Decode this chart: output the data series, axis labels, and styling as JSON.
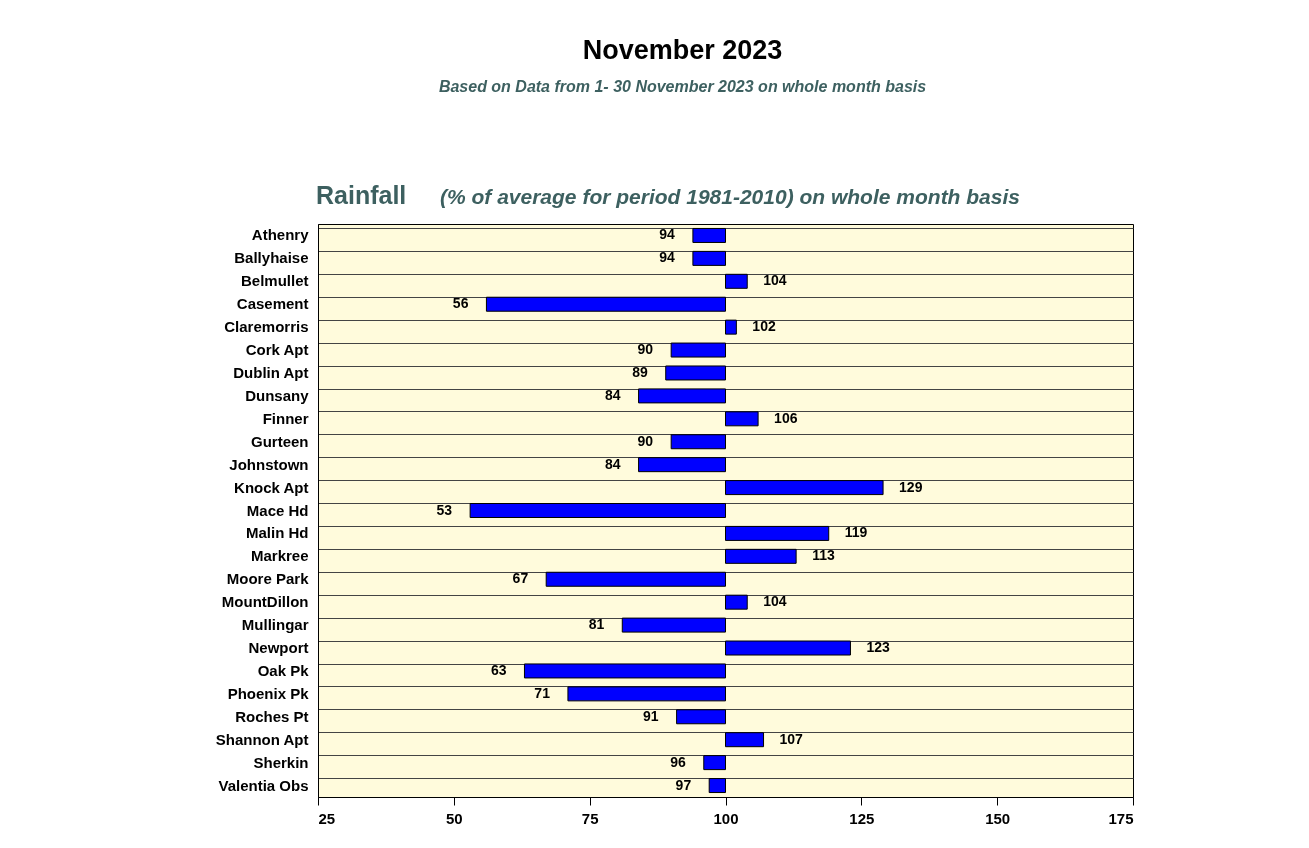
{
  "chart_data": {
    "type": "bar",
    "orientation": "horizontal",
    "title": "November 2023",
    "subtitle": "Based on Data from 1- 30 November 2023 on whole month basis",
    "annotations": [
      "Rainfall",
      "(% of average for period 1981-2010) on whole month basis"
    ],
    "categories": [
      "Athenry",
      "Ballyhaise",
      "Belmullet",
      "Casement",
      "Claremorris",
      "Cork Apt",
      "Dublin Apt",
      "Dunsany",
      "Finner",
      "Gurteen",
      "Johnstown",
      "Knock Apt",
      "Mace Hd",
      "Malin Hd",
      "Markree",
      "Moore Park",
      "MountDillon",
      "Mullingar",
      "Newport",
      "Oak Pk",
      "Phoenix Pk",
      "Roches Pt",
      "Shannon Apt",
      "Sherkin",
      "Valentia Obs"
    ],
    "base": [
      100,
      100,
      100,
      100,
      100,
      100,
      100,
      100,
      100,
      100,
      100,
      100,
      100,
      100,
      100,
      100,
      100,
      100,
      100,
      100,
      100,
      100,
      100,
      100,
      100
    ],
    "values": [
      -6,
      -6,
      4,
      -44,
      2,
      -10,
      -11,
      -16,
      6,
      -10,
      -16,
      29,
      -47,
      19,
      13,
      -33,
      4,
      -19,
      23,
      -37,
      -29,
      -9,
      7,
      -4,
      -3
    ],
    "value_labels": [
      "94",
      "94",
      "104",
      "56",
      "102",
      "90",
      "89",
      "84",
      "106",
      "90",
      "84",
      "129",
      "53",
      "119",
      "113",
      "67",
      "104",
      "81",
      "123",
      "63",
      "71",
      "91",
      "107",
      "96",
      "97"
    ],
    "color": "#0000ff",
    "xlim": [
      25,
      175
    ],
    "xticks": [
      25,
      50,
      75,
      100,
      125,
      150,
      175
    ],
    "grid": "y"
  }
}
